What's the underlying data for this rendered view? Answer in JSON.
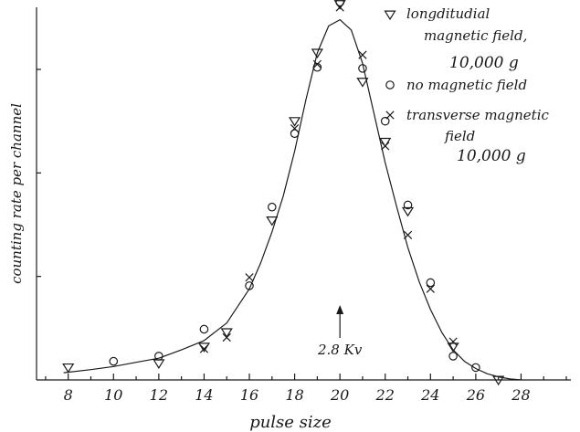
{
  "chart_data": {
    "type": "scatter",
    "title": "",
    "xlabel": "pulse size",
    "ylabel": "counting rate per channel",
    "xlim": [
      6.6,
      30.2
    ],
    "ylim": [
      0,
      36
    ],
    "x_ticks": [
      "8",
      "10",
      "12",
      "14",
      "16",
      "18",
      "20",
      "22",
      "24",
      "26",
      "28"
    ],
    "grid": false,
    "legend_position": "top-right",
    "annotation": {
      "text": "2.8 Kv",
      "x": 20
    },
    "fit_curve": {
      "x": [
        7.8,
        9,
        10,
        11,
        12,
        13,
        14,
        15,
        16,
        16.5,
        17,
        17.5,
        18,
        18.5,
        19,
        19.5,
        20,
        20.5,
        21,
        21.5,
        22,
        22.5,
        23,
        23.5,
        24,
        24.5,
        25,
        25.5,
        26,
        26.5,
        27,
        27.5,
        28
      ],
      "y": [
        0.7,
        1.0,
        1.3,
        1.7,
        2.1,
        2.9,
        3.8,
        5.5,
        8.8,
        11.3,
        14.3,
        17.8,
        22.1,
        27.1,
        31.6,
        34.2,
        34.8,
        33.8,
        30.6,
        25.8,
        21.0,
        16.8,
        12.8,
        9.5,
        6.8,
        4.6,
        2.9,
        1.8,
        1.1,
        0.6,
        0.3,
        0.1,
        0.0
      ]
    },
    "series": [
      {
        "name": "longditudial magnetic field, 10,000 g",
        "marker": "triangle",
        "x": [
          8,
          12,
          14,
          15,
          17,
          18,
          19,
          20,
          21,
          22,
          23,
          25,
          27
        ],
        "y": [
          1.2,
          1.6,
          3.2,
          4.6,
          15.4,
          25.0,
          31.6,
          36.3,
          28.8,
          23.0,
          16.3,
          3.2,
          0.0
        ]
      },
      {
        "name": "no magnetic field",
        "marker": "circle",
        "x": [
          10,
          12,
          14,
          16,
          17,
          18,
          19,
          20,
          21,
          22,
          23,
          24,
          25,
          26
        ],
        "y": [
          1.8,
          2.3,
          4.9,
          9.1,
          16.7,
          23.8,
          30.2,
          36.5,
          30.1,
          25.0,
          16.9,
          9.4,
          2.3,
          1.2
        ]
      },
      {
        "name": "transverse magnetic field 10,000 g",
        "marker": "cross",
        "x": [
          14,
          15,
          16,
          18,
          19,
          20,
          21,
          22,
          23,
          24,
          25
        ],
        "y": [
          3.0,
          4.1,
          9.9,
          24.3,
          30.5,
          36.0,
          31.4,
          22.6,
          14.0,
          8.8,
          3.7
        ]
      }
    ],
    "legend_labels": [
      [
        "longditudial",
        "magnetic field,",
        "10,000 g"
      ],
      [
        "no magnetic field"
      ],
      [
        "transverse magnetic",
        "field",
        "10,000 g"
      ]
    ]
  }
}
